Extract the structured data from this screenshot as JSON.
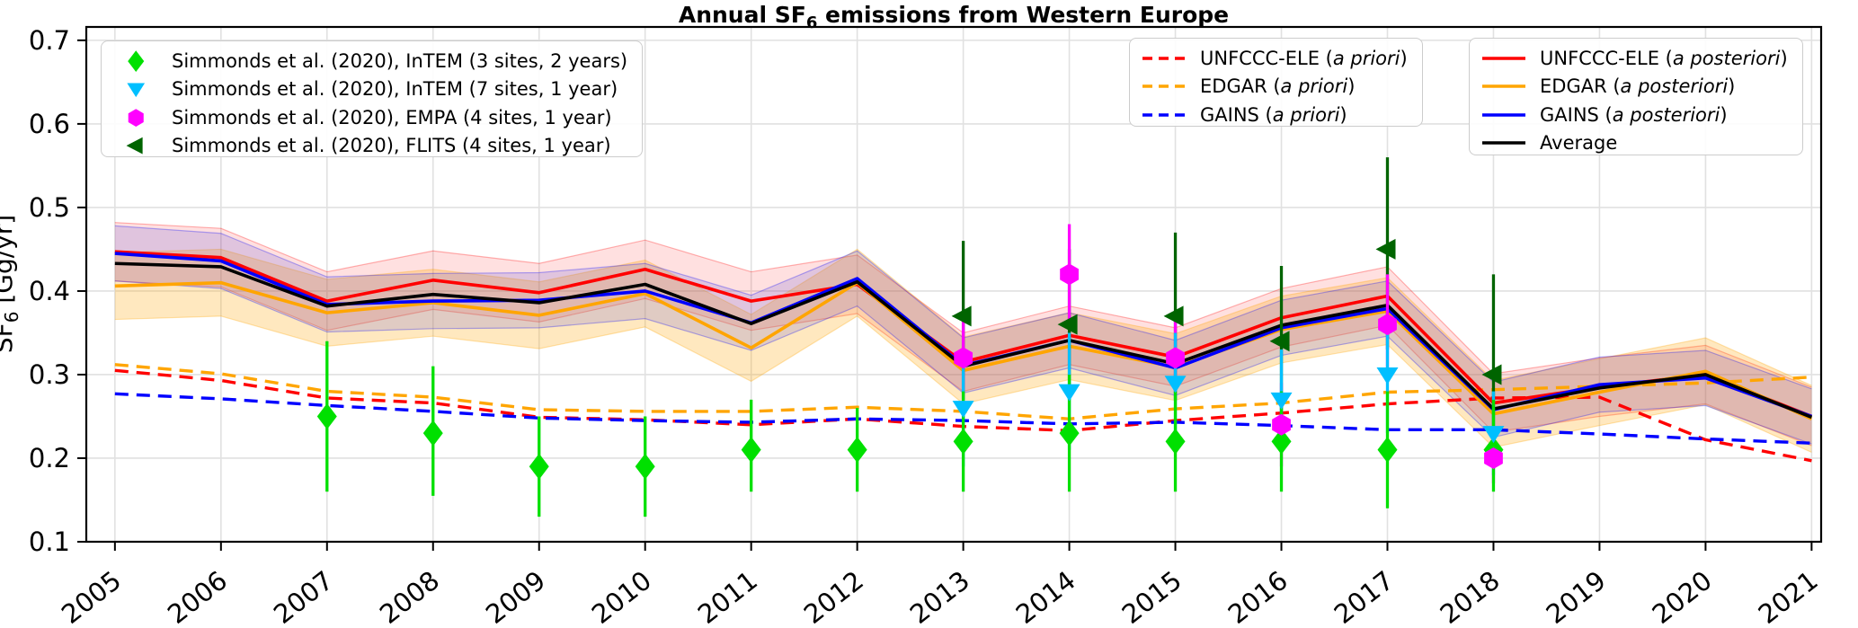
{
  "title": {
    "part1": "Annual SF",
    "sub": "6",
    "part2": " emissions from Western Europe"
  },
  "y_axis": {
    "label_part1": "SF",
    "label_sub": "6",
    "label_part2": " [Gg/yr]",
    "tick_labels": [
      "0.1",
      "0.2",
      "0.3",
      "0.4",
      "0.5",
      "0.6",
      "0.7"
    ]
  },
  "x_axis": {
    "tick_labels": [
      "2005",
      "2006",
      "2007",
      "2008",
      "2009",
      "2010",
      "2011",
      "2012",
      "2013",
      "2014",
      "2015",
      "2016",
      "2017",
      "2018",
      "2019",
      "2020",
      "2021"
    ]
  },
  "colors": {
    "red": "#ff0000",
    "orange": "#ffa500",
    "blue": "#0000ff",
    "black": "#000000",
    "lime": "#00e000",
    "cyan": "#00bfff",
    "magenta": "#ff00ff",
    "darkgreen": "#006400",
    "grid": "#e1e1e1",
    "frame": "#000000",
    "band_red": "rgba(255,0,0,0.12)",
    "band_orange": "rgba(255,165,0,0.25)",
    "band_blue": "rgba(85,70,215,0.18)"
  },
  "chart_data": {
    "type": "line",
    "title": "Annual SF6 emissions from Western Europe",
    "xlabel": "",
    "ylabel": "SF6 [Gg/yr]",
    "grid": true,
    "xlim": [
      2004.73,
      2021.09
    ],
    "ylim": [
      0.1,
      0.716
    ],
    "x": [
      2005,
      2006,
      2007,
      2008,
      2009,
      2010,
      2011,
      2012,
      2013,
      2014,
      2015,
      2016,
      2017,
      2018,
      2019,
      2020,
      2021
    ],
    "series": [
      {
        "name": "UNFCCC-ELE (a priori)",
        "display": "UNFCCC-ELE",
        "qualifier": "a priori",
        "style": "dashed",
        "color": "#ff0000",
        "band": 0,
        "values": [
          0.305,
          0.293,
          0.272,
          0.266,
          0.249,
          0.246,
          0.24,
          0.247,
          0.238,
          0.233,
          0.245,
          0.254,
          0.265,
          0.272,
          0.273,
          0.222,
          0.197
        ]
      },
      {
        "name": "EDGAR (a priori)",
        "display": "EDGAR",
        "qualifier": "a priori",
        "style": "dashed",
        "color": "#ffa500",
        "band": 0,
        "values": [
          0.312,
          0.301,
          0.28,
          0.273,
          0.258,
          0.256,
          0.256,
          0.261,
          0.256,
          0.247,
          0.259,
          0.266,
          0.279,
          0.282,
          0.286,
          0.29,
          0.297
        ]
      },
      {
        "name": "GAINS (a priori)",
        "display": "GAINS",
        "qualifier": "a priori",
        "style": "dashed",
        "color": "#0000ff",
        "band": 0,
        "values": [
          0.277,
          0.271,
          0.263,
          0.256,
          0.248,
          0.245,
          0.243,
          0.247,
          0.245,
          0.241,
          0.243,
          0.239,
          0.234,
          0.234,
          0.229,
          0.223,
          0.218
        ]
      },
      {
        "name": "UNFCCC-ELE (a posteriori)",
        "display": "UNFCCC-ELE",
        "qualifier": "a posteriori",
        "style": "solid",
        "color": "#ff0000",
        "band": 0.035,
        "values": [
          0.447,
          0.44,
          0.388,
          0.413,
          0.398,
          0.426,
          0.388,
          0.408,
          0.315,
          0.347,
          0.321,
          0.368,
          0.394,
          0.266,
          0.285,
          0.3,
          0.25
        ]
      },
      {
        "name": "EDGAR (a posteriori)",
        "display": "EDGAR",
        "qualifier": "a posteriori",
        "style": "solid",
        "color": "#ffa500",
        "band": 0.04,
        "values": [
          0.406,
          0.41,
          0.374,
          0.386,
          0.371,
          0.397,
          0.332,
          0.41,
          0.305,
          0.334,
          0.309,
          0.354,
          0.376,
          0.253,
          0.279,
          0.304,
          0.247
        ]
      },
      {
        "name": "GAINS (a posteriori)",
        "display": "GAINS",
        "qualifier": "a posteriori",
        "style": "solid",
        "color": "#0000ff",
        "band": 0.033,
        "values": [
          0.445,
          0.436,
          0.384,
          0.388,
          0.389,
          0.4,
          0.362,
          0.415,
          0.311,
          0.341,
          0.308,
          0.356,
          0.379,
          0.258,
          0.288,
          0.296,
          0.25
        ]
      },
      {
        "name": "Average",
        "display": "Average",
        "qualifier": null,
        "style": "solid",
        "color": "#000000",
        "band": 0,
        "values": [
          0.433,
          0.429,
          0.382,
          0.396,
          0.386,
          0.408,
          0.361,
          0.411,
          0.31,
          0.341,
          0.313,
          0.359,
          0.383,
          0.259,
          0.284,
          0.3,
          0.249
        ]
      }
    ],
    "scatter": [
      {
        "name": "Simmonds et al. (2020), InTEM (3 sites, 2 years)",
        "marker": "diamond",
        "color": "#00e000",
        "points": [
          {
            "x": 2007,
            "y": 0.25,
            "lo": 0.16,
            "hi": 0.34
          },
          {
            "x": 2008,
            "y": 0.23,
            "lo": 0.155,
            "hi": 0.31
          },
          {
            "x": 2009,
            "y": 0.19,
            "lo": 0.13,
            "hi": 0.25
          },
          {
            "x": 2010,
            "y": 0.19,
            "lo": 0.13,
            "hi": 0.25
          },
          {
            "x": 2011,
            "y": 0.21,
            "lo": 0.16,
            "hi": 0.27
          },
          {
            "x": 2012,
            "y": 0.21,
            "lo": 0.16,
            "hi": 0.26
          },
          {
            "x": 2013,
            "y": 0.22,
            "lo": 0.16,
            "hi": 0.28
          },
          {
            "x": 2014,
            "y": 0.23,
            "lo": 0.16,
            "hi": 0.3
          },
          {
            "x": 2015,
            "y": 0.22,
            "lo": 0.16,
            "hi": 0.28
          },
          {
            "x": 2016,
            "y": 0.22,
            "lo": 0.16,
            "hi": 0.28
          },
          {
            "x": 2017,
            "y": 0.21,
            "lo": 0.14,
            "hi": 0.28
          },
          {
            "x": 2018,
            "y": 0.21,
            "lo": 0.16,
            "hi": 0.27
          }
        ]
      },
      {
        "name": "Simmonds et al. (2020), InTEM (7 sites, 1 year)",
        "marker": "triangle-down",
        "color": "#00bfff",
        "points": [
          {
            "x": 2013,
            "y": 0.26,
            "lo": 0.19,
            "hi": 0.33
          },
          {
            "x": 2014,
            "y": 0.28,
            "lo": 0.21,
            "hi": 0.35
          },
          {
            "x": 2015,
            "y": 0.29,
            "lo": 0.23,
            "hi": 0.35
          },
          {
            "x": 2016,
            "y": 0.27,
            "lo": 0.21,
            "hi": 0.33
          },
          {
            "x": 2017,
            "y": 0.3,
            "lo": 0.23,
            "hi": 0.37
          },
          {
            "x": 2018,
            "y": 0.23,
            "lo": 0.18,
            "hi": 0.28
          }
        ]
      },
      {
        "name": "Simmonds et al. (2020), EMPA (4 sites, 1 year)",
        "marker": "hexagon",
        "color": "#ff00ff",
        "points": [
          {
            "x": 2013,
            "y": 0.32,
            "lo": 0.27,
            "hi": 0.37
          },
          {
            "x": 2014,
            "y": 0.42,
            "lo": 0.36,
            "hi": 0.48
          },
          {
            "x": 2015,
            "y": 0.32,
            "lo": 0.27,
            "hi": 0.37
          },
          {
            "x": 2016,
            "y": 0.24,
            "lo": 0.19,
            "hi": 0.29
          },
          {
            "x": 2017,
            "y": 0.36,
            "lo": 0.3,
            "hi": 0.42
          },
          {
            "x": 2018,
            "y": 0.2,
            "lo": 0.17,
            "hi": 0.23
          }
        ]
      },
      {
        "name": "Simmonds et al. (2020), FLITS (4 sites, 1 year)",
        "marker": "triangle-left",
        "color": "#006400",
        "points": [
          {
            "x": 2013,
            "y": 0.37,
            "lo": 0.27,
            "hi": 0.46
          },
          {
            "x": 2014,
            "y": 0.36,
            "lo": 0.27,
            "hi": 0.45
          },
          {
            "x": 2015,
            "y": 0.37,
            "lo": 0.27,
            "hi": 0.47
          },
          {
            "x": 2016,
            "y": 0.34,
            "lo": 0.25,
            "hi": 0.43
          },
          {
            "x": 2017,
            "y": 0.45,
            "lo": 0.33,
            "hi": 0.56
          },
          {
            "x": 2018,
            "y": 0.3,
            "lo": 0.19,
            "hi": 0.42
          }
        ]
      }
    ],
    "legend_positions": {
      "scatter": "upper left",
      "priori": "upper center-right",
      "posteriori": "upper right"
    }
  }
}
